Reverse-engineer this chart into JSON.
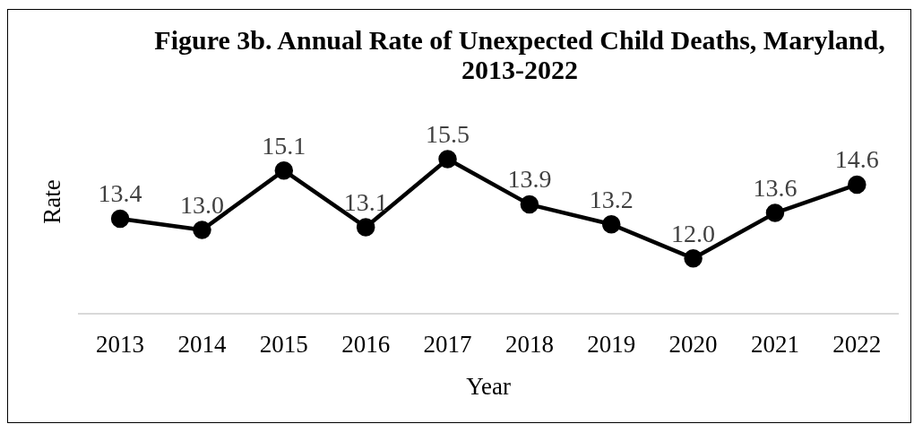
{
  "chart_data": {
    "type": "line",
    "title": "Figure 3b. Annual Rate of Unexpected Child Deaths, Maryland, 2013-2022",
    "xlabel": "Year",
    "ylabel": "Rate",
    "categories": [
      "2013",
      "2014",
      "2015",
      "2016",
      "2017",
      "2018",
      "2019",
      "2020",
      "2021",
      "2022"
    ],
    "values": [
      13.4,
      13.0,
      15.1,
      13.1,
      15.5,
      13.9,
      13.2,
      12.0,
      13.6,
      14.6
    ],
    "value_labels": [
      "13.4",
      "13.0",
      "15.1",
      "13.1",
      "15.5",
      "13.9",
      "13.2",
      "12.0",
      "13.6",
      "14.6"
    ],
    "color": "#000000",
    "marker": "circle",
    "line_style": "solid"
  }
}
